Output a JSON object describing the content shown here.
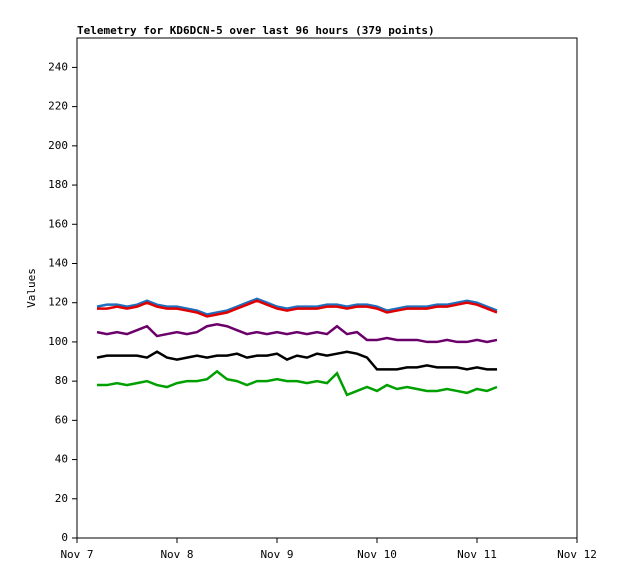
{
  "chart_data": {
    "type": "line",
    "title": "Telemetry for KD6DCN-5 over last 96 hours (379 points)",
    "ylabel": "Values",
    "x": [
      7.2,
      7.3,
      7.4,
      7.5,
      7.6,
      7.7,
      7.8,
      7.9,
      8.0,
      8.1,
      8.2,
      8.3,
      8.4,
      8.5,
      8.6,
      8.7,
      8.8,
      8.9,
      9.0,
      9.1,
      9.2,
      9.3,
      9.4,
      9.5,
      9.6,
      9.7,
      9.8,
      9.9,
      10.0,
      10.1,
      10.2,
      10.3,
      10.4,
      10.5,
      10.6,
      10.7,
      10.8,
      10.9,
      11.0,
      11.1,
      11.2
    ],
    "series": [
      {
        "color": "#1f6fbf",
        "values": [
          118,
          119,
          119,
          118,
          119,
          121,
          119,
          118,
          118,
          117,
          116,
          114,
          115,
          116,
          118,
          120,
          122,
          120,
          118,
          117,
          118,
          118,
          118,
          119,
          119,
          118,
          119,
          119,
          118,
          116,
          117,
          118,
          118,
          118,
          119,
          119,
          120,
          121,
          120,
          118,
          116
        ]
      },
      {
        "color": "#e00000",
        "values": [
          117,
          117,
          118,
          117,
          118,
          120,
          118,
          117,
          117,
          116,
          115,
          113,
          114,
          115,
          117,
          119,
          121,
          119,
          117,
          116,
          117,
          117,
          117,
          118,
          118,
          117,
          118,
          118,
          117,
          115,
          116,
          117,
          117,
          117,
          118,
          118,
          119,
          120,
          119,
          117,
          115
        ]
      },
      {
        "color": "#6b006b",
        "values": [
          105,
          104,
          105,
          104,
          106,
          108,
          103,
          104,
          105,
          104,
          105,
          108,
          109,
          108,
          106,
          104,
          105,
          104,
          105,
          104,
          105,
          104,
          105,
          104,
          108,
          104,
          105,
          101,
          101,
          102,
          101,
          101,
          101,
          100,
          100,
          101,
          100,
          100,
          101,
          100,
          101
        ]
      },
      {
        "color": "#000000",
        "values": [
          92,
          93,
          93,
          93,
          93,
          92,
          95,
          92,
          91,
          92,
          93,
          92,
          93,
          93,
          94,
          92,
          93,
          93,
          94,
          91,
          93,
          92,
          94,
          93,
          94,
          95,
          94,
          92,
          86,
          86,
          86,
          87,
          87,
          88,
          87,
          87,
          87,
          86,
          87,
          86,
          86
        ]
      },
      {
        "color": "#00a000",
        "values": [
          78,
          78,
          79,
          78,
          79,
          80,
          78,
          77,
          79,
          80,
          80,
          81,
          85,
          81,
          80,
          78,
          80,
          80,
          81,
          80,
          80,
          79,
          80,
          79,
          84,
          73,
          75,
          77,
          75,
          78,
          76,
          77,
          76,
          75,
          75,
          76,
          75,
          74,
          76,
          75,
          77
        ]
      }
    ],
    "xlim": [
      7,
      12
    ],
    "xticks": [
      {
        "value": 7,
        "label": "Nov 7"
      },
      {
        "value": 8,
        "label": "Nov 8"
      },
      {
        "value": 9,
        "label": "Nov 9"
      },
      {
        "value": 10,
        "label": "Nov 10"
      },
      {
        "value": 11,
        "label": "Nov 11"
      },
      {
        "value": 12,
        "label": "Nov 12"
      }
    ],
    "ylim": [
      0,
      255
    ],
    "yticks": [
      0,
      20,
      40,
      60,
      80,
      100,
      120,
      140,
      160,
      180,
      200,
      220,
      240
    ]
  }
}
